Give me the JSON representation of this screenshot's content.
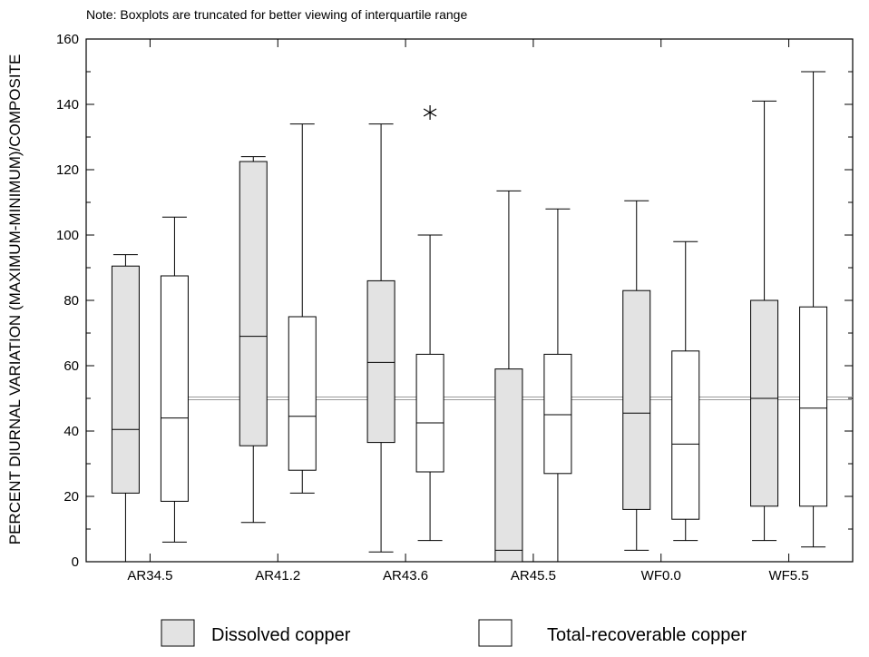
{
  "chart_data": {
    "type": "boxplot",
    "note": "Note: Boxplots are truncated for better viewing of interquartile range",
    "ylabel": "PERCENT DIURNAL VARIATION (MAXIMUM-MINIMUM)/COMPOSITE",
    "xlabel": "",
    "ylim": [
      0,
      160
    ],
    "y_ticks": [
      0,
      20,
      40,
      60,
      80,
      100,
      120,
      140,
      160
    ],
    "y_tick_labels": [
      "0",
      "20",
      "40",
      "60",
      "80",
      "100",
      "120",
      "140",
      "160"
    ],
    "grid": false,
    "reference_line": 50,
    "categories": [
      "AR34.5",
      "AR41.2",
      "AR43.6",
      "AR45.5",
      "WF0.0",
      "WF5.5"
    ],
    "legend_position": "bottom",
    "series": [
      {
        "name": "Dissolved copper",
        "color": "#e3e3e3",
        "boxes": [
          {
            "min": 0,
            "q1": 21,
            "median": 40.5,
            "q3": 90.5,
            "max": 94
          },
          {
            "min": 12,
            "q1": 35.5,
            "median": 69,
            "q3": 122.5,
            "max": 124
          },
          {
            "min": 3,
            "q1": 36.5,
            "median": 61,
            "q3": 86,
            "max": 134
          },
          {
            "min": 0,
            "q1": 0,
            "median": 3.5,
            "q3": 59,
            "max": 113.5
          },
          {
            "min": 3.5,
            "q1": 16,
            "median": 45.5,
            "q3": 83,
            "max": 110.5
          },
          {
            "min": 6.5,
            "q1": 17,
            "median": 50,
            "q3": 80,
            "max": 141
          }
        ]
      },
      {
        "name": "Total-recoverable copper",
        "color": "#ffffff",
        "boxes": [
          {
            "min": 6,
            "q1": 18.5,
            "median": 44,
            "q3": 87.5,
            "max": 105.5
          },
          {
            "min": 21,
            "q1": 28,
            "median": 44.5,
            "q3": 75,
            "max": 134
          },
          {
            "min": 6.5,
            "q1": 27.5,
            "median": 42.5,
            "q3": 63.5,
            "max": 100,
            "outliers": [
              137.5
            ]
          },
          {
            "min": 0,
            "q1": 27,
            "median": 45,
            "q3": 63.5,
            "max": 108
          },
          {
            "min": 6.5,
            "q1": 13,
            "median": 36,
            "q3": 64.5,
            "max": 98
          },
          {
            "min": 4.5,
            "q1": 17,
            "median": 47,
            "q3": 78,
            "max": 150
          }
        ]
      }
    ]
  }
}
